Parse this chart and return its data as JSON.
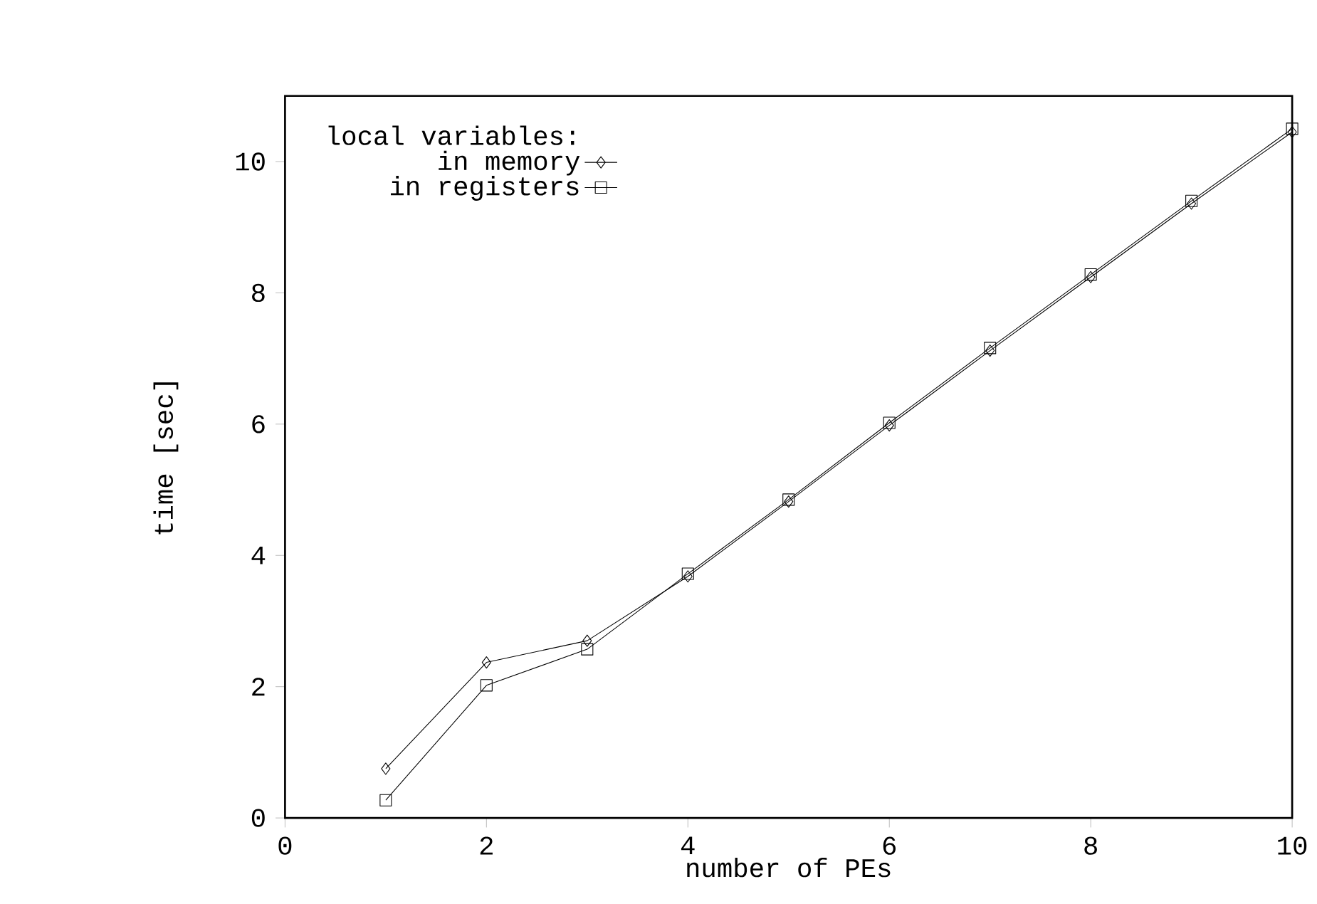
{
  "chart_data": {
    "type": "line",
    "xlabel": "number of PEs",
    "ylabel": "time [sec]",
    "legend_title": "local variables:",
    "legend": "top left",
    "grid": false,
    "x": [
      1,
      2,
      3,
      4,
      5,
      6,
      7,
      8,
      9,
      10
    ],
    "xlim": [
      0,
      10
    ],
    "ylim": [
      0,
      11
    ],
    "xticks": [
      0,
      2,
      4,
      6,
      8,
      10
    ],
    "yticks": [
      0,
      2,
      4,
      6,
      8,
      10
    ],
    "series": [
      {
        "name": "in memory",
        "color": "#000000",
        "marker": "diamond",
        "values": [
          0.75,
          2.37,
          2.7,
          3.68,
          4.82,
          5.98,
          7.12,
          8.24,
          9.36,
          10.45
        ]
      },
      {
        "name": "in registers",
        "color": "#000000",
        "marker": "square",
        "values": [
          0.27,
          2.02,
          2.57,
          3.72,
          4.85,
          6.02,
          7.16,
          8.28,
          9.4,
          10.5
        ]
      }
    ]
  }
}
